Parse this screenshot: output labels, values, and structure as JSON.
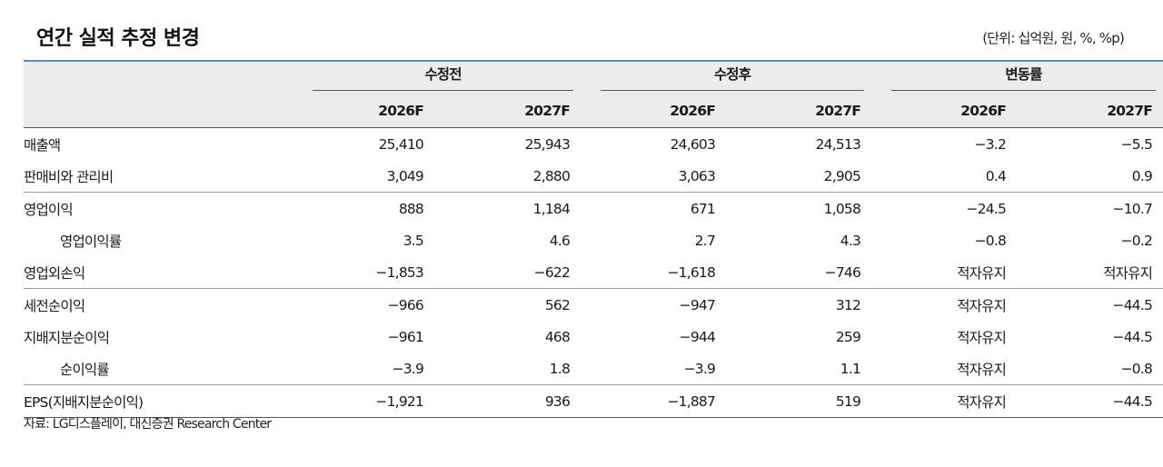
{
  "title": "연간 실적 추정 변경",
  "unit": "(단위: 십억원, 원, %, %p)",
  "groups": [
    "수정전",
    "수정후",
    "변동률"
  ],
  "years": [
    "2026F",
    "2027F",
    "2026F",
    "2027F",
    "2026F",
    "2027F"
  ],
  "rows": [
    {
      "label": "매출액",
      "values": [
        "25,410",
        "25,943",
        "24,603",
        "24,513",
        "−3.2",
        "−5.5"
      ]
    },
    {
      "label": "판매비와 관리비",
      "values": [
        "3,049",
        "2,880",
        "3,063",
        "2,905",
        "0.4",
        "0.9"
      ]
    },
    {
      "label": "영업이익",
      "values": [
        "888",
        "1,184",
        "671",
        "1,058",
        "−24.5",
        "−10.7"
      ]
    },
    {
      "label": "영업이익률",
      "values": [
        "3.5",
        "4.6",
        "2.7",
        "4.3",
        "−0.8",
        "−0.2"
      ]
    },
    {
      "label": "영업외손익",
      "values": [
        "−1,853",
        "−622",
        "−1,618",
        "−746",
        "적자유지",
        "적자유지"
      ]
    },
    {
      "label": "세전순이익",
      "values": [
        "−966",
        "562",
        "−947",
        "312",
        "적자유지",
        "−44.5"
      ]
    },
    {
      "label": "지배지분순이익",
      "values": [
        "−961",
        "468",
        "−944",
        "259",
        "적자유지",
        "−44.5"
      ]
    },
    {
      "label": "순이익률",
      "values": [
        "−3.9",
        "1.8",
        "−3.9",
        "1.1",
        "적자유지",
        "−0.8"
      ]
    },
    {
      "label": "EPS(지배지분순이익)",
      "values": [
        "−1,921",
        "936",
        "−1,887",
        "519",
        "적자유지",
        "−44.5"
      ]
    }
  ],
  "source": "자료: LG디스플레이, 대신증권 Research Center"
}
